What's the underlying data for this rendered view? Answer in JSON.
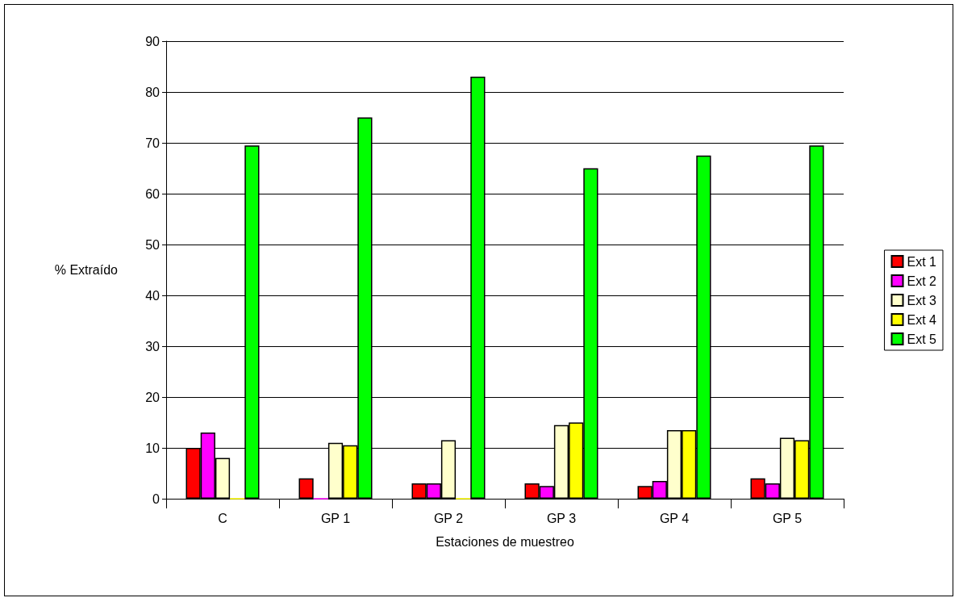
{
  "chart_data": {
    "type": "bar",
    "xlabel": "Estaciones de muestreo",
    "ylabel": "% Extraído",
    "categories": [
      "C",
      "GP 1",
      "GP 2",
      "GP 3",
      "GP 4",
      "GP 5"
    ],
    "series": [
      {
        "name": "Ext 1",
        "color": "#ff0000",
        "values": [
          10,
          4,
          3,
          3,
          2.5,
          4
        ]
      },
      {
        "name": "Ext 2",
        "color": "#ff00ff",
        "values": [
          13,
          0,
          3,
          2.5,
          3.5,
          3
        ]
      },
      {
        "name": "Ext 3",
        "color": "#ffffcc",
        "values": [
          8,
          11,
          11.5,
          14.5,
          13.5,
          12
        ]
      },
      {
        "name": "Ext 4",
        "color": "#ffff00",
        "values": [
          0,
          10.5,
          0,
          15,
          13.5,
          11.5
        ]
      },
      {
        "name": "Ext 5",
        "color": "#00ff00",
        "values": [
          69.5,
          75,
          83,
          65,
          67.5,
          69.5
        ]
      }
    ],
    "ylim": [
      0,
      90
    ],
    "yticks": [
      0,
      10,
      20,
      30,
      40,
      50,
      60,
      70,
      80,
      90
    ],
    "grid": "y",
    "legend": "right"
  }
}
